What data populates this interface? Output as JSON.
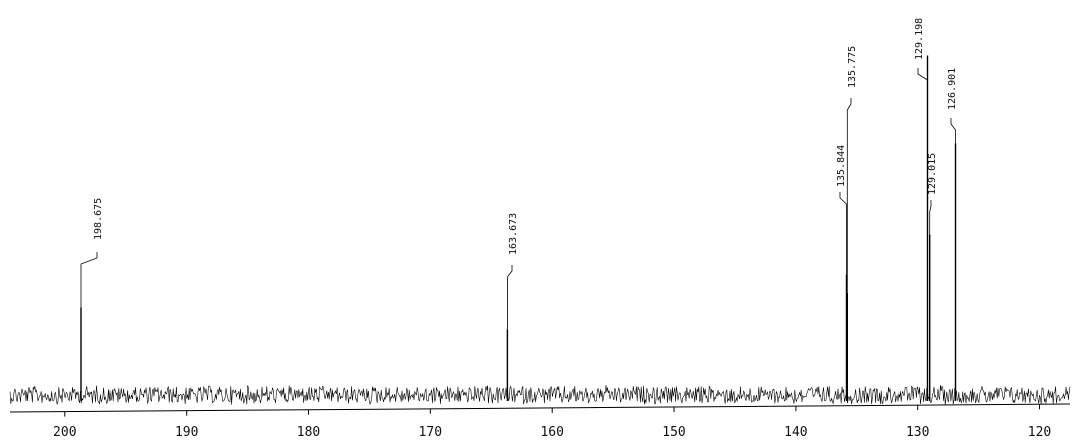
{
  "chart_data": {
    "type": "line",
    "title": "",
    "xlabel": "",
    "ylabel": "",
    "x_axis_reversed": true,
    "xlim": [
      204.5,
      117.5
    ],
    "grid": false,
    "legend": "none",
    "line_color": "#000000",
    "tick_values": [
      200,
      190,
      180,
      170,
      160,
      150,
      140,
      130,
      120
    ],
    "tick_labels": [
      "200",
      "190",
      "180",
      "170",
      "160",
      "150",
      "140",
      "130",
      "120"
    ],
    "peaks": [
      {
        "ppm": 198.675,
        "label": "198.675",
        "relative_height": 0.24
      },
      {
        "ppm": 163.673,
        "label": "163.673",
        "relative_height": 0.18
      },
      {
        "ppm": 135.844,
        "label": "135.844",
        "relative_height": 0.33
      },
      {
        "ppm": 135.775,
        "label": "135.775",
        "relative_height": 0.28
      },
      {
        "ppm": 129.198,
        "label": "129.198",
        "relative_height": 0.93
      },
      {
        "ppm": 129.015,
        "label": "129.015",
        "relative_height": 0.44
      },
      {
        "ppm": 126.901,
        "label": "126.901",
        "relative_height": 0.69
      }
    ]
  }
}
